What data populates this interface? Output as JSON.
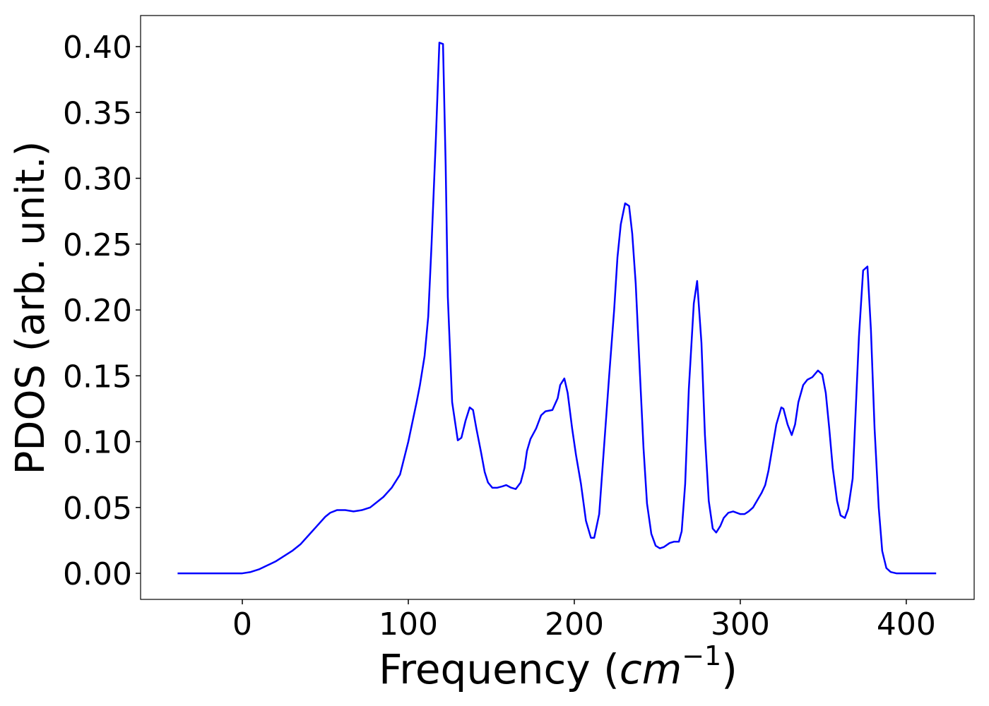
{
  "chart_data": {
    "type": "line",
    "x_label": [
      "Frequency (",
      "cm",
      "−1",
      ")"
    ],
    "y_label": "PDOS (arb. unit.)",
    "x": [
      -39,
      -20,
      0,
      5,
      10,
      15,
      20,
      25,
      30,
      35,
      40,
      45,
      50,
      53,
      57,
      62,
      67,
      72,
      77,
      80,
      85,
      90,
      95,
      100,
      103,
      105,
      107,
      109.8,
      112,
      114,
      116.6,
      118.7,
      120.9,
      122.5,
      123.8,
      126.4,
      129.8,
      132,
      134.5,
      137,
      139,
      141,
      143.8,
      146,
      148,
      150.6,
      153.6,
      156.6,
      159,
      162,
      164.7,
      167.7,
      170,
      171.5,
      173.6,
      177,
      180,
      182.6,
      186.8,
      190,
      191.5,
      194,
      196,
      198.7,
      201,
      204,
      207,
      210,
      212,
      215,
      217,
      219,
      221,
      224,
      226,
      228,
      230.6,
      233,
      234.9,
      237,
      239.6,
      241.7,
      243.8,
      246.4,
      249,
      251.5,
      254,
      257.4,
      260,
      263,
      264.7,
      266.8,
      269,
      272,
      274,
      276.6,
      278.7,
      281,
      283.4,
      285.5,
      288,
      290,
      292.8,
      295.7,
      300,
      302.6,
      305,
      307.7,
      310,
      312.8,
      315,
      317,
      319,
      321.7,
      324.7,
      326,
      328.5,
      331,
      333,
      335,
      337.9,
      340.4,
      343.4,
      346.8,
      349.4,
      351.5,
      353.6,
      355.7,
      358.3,
      360.4,
      363,
      365,
      367.7,
      369.4,
      371.5,
      374,
      376.6,
      378.7,
      380.9,
      383.4,
      385.5,
      388,
      390.6,
      394,
      418
    ],
    "series": [
      {
        "name": "PDOS",
        "color": "#0000ff",
        "values": [
          0,
          0,
          0,
          0.001,
          0.003,
          0.006,
          0.009,
          0.013,
          0.017,
          0.022,
          0.029,
          0.036,
          0.043,
          0.046,
          0.048,
          0.048,
          0.047,
          0.048,
          0.05,
          0.053,
          0.058,
          0.065,
          0.075,
          0.1,
          0.118,
          0.13,
          0.143,
          0.165,
          0.195,
          0.25,
          0.33,
          0.403,
          0.402,
          0.31,
          0.21,
          0.13,
          0.101,
          0.103,
          0.116,
          0.126,
          0.124,
          0.11,
          0.092,
          0.077,
          0.069,
          0.065,
          0.065,
          0.066,
          0.067,
          0.065,
          0.064,
          0.069,
          0.08,
          0.093,
          0.102,
          0.11,
          0.12,
          0.123,
          0.124,
          0.133,
          0.143,
          0.148,
          0.137,
          0.11,
          0.09,
          0.068,
          0.04,
          0.027,
          0.027,
          0.045,
          0.08,
          0.115,
          0.15,
          0.2,
          0.24,
          0.265,
          0.281,
          0.279,
          0.258,
          0.22,
          0.15,
          0.095,
          0.053,
          0.03,
          0.021,
          0.019,
          0.02,
          0.023,
          0.024,
          0.024,
          0.032,
          0.068,
          0.14,
          0.205,
          0.222,
          0.175,
          0.105,
          0.055,
          0.034,
          0.031,
          0.036,
          0.042,
          0.046,
          0.047,
          0.045,
          0.045,
          0.047,
          0.05,
          0.055,
          0.061,
          0.067,
          0.078,
          0.093,
          0.113,
          0.126,
          0.125,
          0.113,
          0.105,
          0.113,
          0.13,
          0.143,
          0.147,
          0.149,
          0.154,
          0.151,
          0.137,
          0.11,
          0.08,
          0.055,
          0.044,
          0.042,
          0.049,
          0.072,
          0.12,
          0.18,
          0.23,
          0.233,
          0.185,
          0.11,
          0.05,
          0.017,
          0.004,
          0.001,
          0,
          0
        ]
      }
    ],
    "xlim": [
      -61.3,
      440.9
    ],
    "ylim": [
      -0.0198,
      0.4236
    ],
    "xticks": [
      0,
      100,
      200,
      300,
      400
    ],
    "yticks": [
      {
        "value": 0,
        "label": "0.00"
      },
      {
        "value": 0.05,
        "label": "0.05"
      },
      {
        "value": 0.1,
        "label": "0.10"
      },
      {
        "value": 0.15,
        "label": "0.15"
      },
      {
        "value": 0.2,
        "label": "0.20"
      },
      {
        "value": 0.25,
        "label": "0.25"
      },
      {
        "value": 0.3,
        "label": "0.30"
      },
      {
        "value": 0.35,
        "label": "0.35"
      },
      {
        "value": 0.4,
        "label": "0.40"
      }
    ],
    "grid": false
  }
}
